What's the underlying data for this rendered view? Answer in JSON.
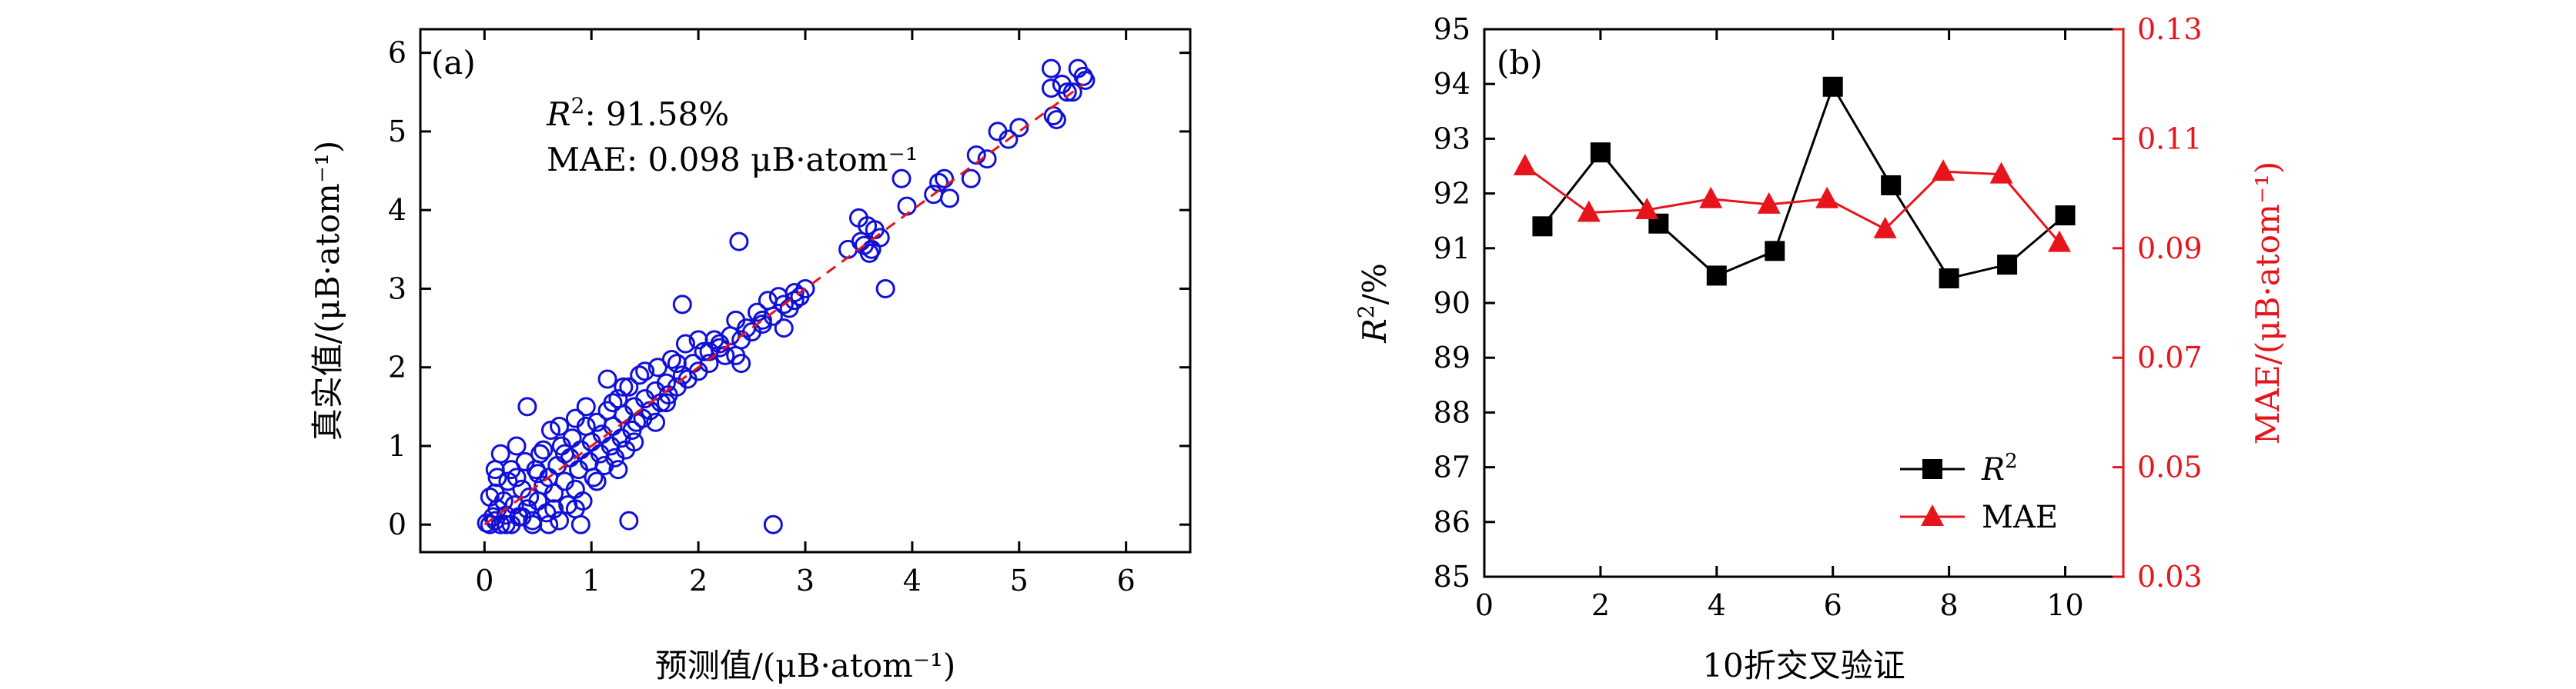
{
  "colors": {
    "scatter": "#1010d8",
    "diagonal": "#e8141b",
    "r2_series": "#000000",
    "mae_series": "#e8141b",
    "axis": "#000000"
  },
  "chart_data": [
    {
      "type": "scatter",
      "panel_label": "(a)",
      "xlabel": "预测值/(μB·atom⁻¹)",
      "ylabel": "真实值/(μB·atom⁻¹)",
      "xlim": [
        -0.6,
        6.6
      ],
      "ylim": [
        -0.35,
        6.3
      ],
      "xticks": [
        0,
        1,
        2,
        3,
        4,
        5,
        6
      ],
      "yticks": [
        0,
        1,
        2,
        3,
        4,
        5,
        6
      ],
      "annotations": {
        "r2_name": "R",
        "r2_sup": "2",
        "r2_value": ": 91.58%",
        "mae_text": "MAE: 0.098 μB·atom⁻¹"
      },
      "diagonal": {
        "from": [
          0,
          0
        ],
        "to": [
          5.6,
          5.6
        ],
        "style": "dashed"
      },
      "points": [
        [
          0.02,
          0.02
        ],
        [
          0.05,
          0.0
        ],
        [
          0.08,
          0.1
        ],
        [
          0.1,
          0.05
        ],
        [
          0.12,
          0.2
        ],
        [
          0.15,
          0.0
        ],
        [
          0.18,
          0.3
        ],
        [
          0.2,
          0.12
        ],
        [
          0.05,
          0.35
        ],
        [
          0.1,
          0.4
        ],
        [
          0.22,
          0.55
        ],
        [
          0.25,
          0.0
        ],
        [
          0.28,
          0.25
        ],
        [
          0.3,
          0.6
        ],
        [
          0.32,
          0.1
        ],
        [
          0.35,
          0.45
        ],
        [
          0.38,
          0.8
        ],
        [
          0.4,
          0.2
        ],
        [
          0.42,
          0.35
        ],
        [
          0.45,
          0.05
        ],
        [
          0.48,
          0.7
        ],
        [
          0.5,
          0.3
        ],
        [
          0.52,
          0.9
        ],
        [
          0.55,
          0.5
        ],
        [
          0.58,
          0.15
        ],
        [
          0.6,
          0.6
        ],
        [
          0.62,
          1.2
        ],
        [
          0.65,
          0.4
        ],
        [
          0.68,
          0.75
        ],
        [
          0.7,
          0.05
        ],
        [
          0.72,
          1.0
        ],
        [
          0.75,
          0.55
        ],
        [
          0.78,
          0.25
        ],
        [
          0.8,
          0.85
        ],
        [
          0.82,
          1.1
        ],
        [
          0.85,
          0.45
        ],
        [
          0.88,
          0.7
        ],
        [
          0.9,
          0.95
        ],
        [
          0.92,
          0.3
        ],
        [
          0.95,
          1.25
        ],
        [
          0.98,
          0.8
        ],
        [
          1.0,
          1.05
        ],
        [
          1.02,
          0.6
        ],
        [
          1.05,
          1.3
        ],
        [
          1.08,
          0.9
        ],
        [
          1.1,
          1.15
        ],
        [
          1.12,
          0.75
        ],
        [
          1.15,
          1.45
        ],
        [
          1.18,
          1.0
        ],
        [
          1.2,
          1.25
        ],
        [
          1.22,
          0.85
        ],
        [
          1.25,
          1.6
        ],
        [
          1.28,
          1.1
        ],
        [
          1.3,
          1.4
        ],
        [
          1.32,
          0.95
        ],
        [
          1.35,
          1.75
        ],
        [
          1.38,
          1.2
        ],
        [
          1.4,
          1.5
        ],
        [
          1.42,
          1.3
        ],
        [
          1.45,
          1.9
        ],
        [
          1.48,
          1.35
        ],
        [
          1.5,
          1.6
        ],
        [
          1.55,
          1.45
        ],
        [
          1.6,
          1.7
        ],
        [
          1.62,
          2.0
        ],
        [
          1.65,
          1.55
        ],
        [
          1.7,
          1.8
        ],
        [
          1.72,
          1.65
        ],
        [
          1.75,
          2.1
        ],
        [
          1.8,
          1.75
        ],
        [
          1.85,
          1.9
        ],
        [
          1.88,
          2.3
        ],
        [
          1.9,
          1.85
        ],
        [
          1.95,
          2.05
        ],
        [
          2.0,
          1.95
        ],
        [
          2.05,
          2.2
        ],
        [
          2.1,
          2.05
        ],
        [
          2.15,
          2.35
        ],
        [
          2.2,
          2.25
        ],
        [
          2.25,
          2.15
        ],
        [
          2.3,
          2.4
        ],
        [
          2.35,
          2.6
        ],
        [
          2.4,
          2.35
        ],
        [
          2.45,
          2.5
        ],
        [
          2.5,
          2.45
        ],
        [
          2.55,
          2.7
        ],
        [
          2.6,
          2.55
        ],
        [
          2.65,
          2.85
        ],
        [
          2.7,
          2.65
        ],
        [
          2.75,
          2.9
        ],
        [
          2.8,
          2.8
        ],
        [
          2.85,
          2.75
        ],
        [
          2.9,
          2.95
        ],
        [
          2.95,
          2.9
        ],
        [
          3.0,
          3.0
        ],
        [
          2.38,
          3.6
        ],
        [
          1.85,
          2.8
        ],
        [
          0.4,
          1.5
        ],
        [
          0.1,
          0.7
        ],
        [
          0.15,
          0.9
        ],
        [
          0.3,
          1.0
        ],
        [
          0.2,
          0.0
        ],
        [
          0.6,
          0.0
        ],
        [
          0.9,
          0.0
        ],
        [
          0.45,
          0.0
        ],
        [
          1.35,
          0.05
        ],
        [
          2.7,
          0.0
        ],
        [
          3.75,
          3.0
        ],
        [
          3.4,
          3.5
        ],
        [
          3.5,
          3.9
        ],
        [
          3.55,
          3.55
        ],
        [
          3.6,
          3.45
        ],
        [
          3.65,
          3.75
        ],
        [
          3.7,
          3.65
        ],
        [
          3.58,
          3.8
        ],
        [
          3.62,
          3.5
        ],
        [
          3.52,
          3.6
        ],
        [
          3.9,
          4.4
        ],
        [
          3.95,
          4.05
        ],
        [
          4.2,
          4.2
        ],
        [
          4.25,
          4.35
        ],
        [
          4.3,
          4.4
        ],
        [
          4.35,
          4.15
        ],
        [
          4.55,
          4.4
        ],
        [
          4.6,
          4.7
        ],
        [
          4.7,
          4.65
        ],
        [
          4.8,
          5.0
        ],
        [
          4.9,
          4.9
        ],
        [
          5.0,
          5.05
        ],
        [
          5.3,
          5.8
        ],
        [
          5.32,
          5.2
        ],
        [
          5.35,
          5.15
        ],
        [
          5.4,
          5.6
        ],
        [
          5.45,
          5.5
        ],
        [
          5.55,
          5.8
        ],
        [
          5.6,
          5.7
        ],
        [
          5.62,
          5.65
        ],
        [
          5.3,
          5.55
        ],
        [
          5.5,
          5.5
        ],
        [
          1.05,
          0.55
        ],
        [
          1.25,
          0.7
        ],
        [
          0.85,
          1.35
        ],
        [
          0.7,
          1.25
        ],
        [
          0.55,
          0.95
        ],
        [
          1.4,
          1.05
        ],
        [
          1.6,
          1.3
        ],
        [
          1.15,
          1.85
        ],
        [
          0.95,
          1.5
        ],
        [
          0.35,
          0.1
        ],
        [
          0.65,
          0.2
        ],
        [
          0.25,
          0.7
        ],
        [
          0.12,
          0.6
        ],
        [
          2.35,
          2.15
        ],
        [
          2.4,
          2.05
        ],
        [
          2.6,
          2.6
        ],
        [
          2.8,
          2.5
        ],
        [
          2.9,
          2.85
        ],
        [
          1.7,
          1.55
        ],
        [
          1.8,
          2.05
        ],
        [
          2.0,
          2.35
        ],
        [
          2.1,
          2.2
        ],
        [
          2.2,
          2.3
        ],
        [
          1.5,
          1.95
        ],
        [
          1.3,
          1.75
        ],
        [
          1.2,
          1.55
        ],
        [
          0.75,
          0.9
        ],
        [
          0.85,
          0.2
        ],
        [
          0.5,
          0.65
        ]
      ]
    },
    {
      "type": "line",
      "panel_label": "(b)",
      "xlabel": "10折交叉验证",
      "ylabel_name": "R",
      "ylabel_sup": "2",
      "ylabel_rest": "/%",
      "y2label": "MAE/(μB·atom⁻¹)",
      "xlim": [
        0,
        11
      ],
      "ylim": [
        85,
        95
      ],
      "y2lim": [
        0.03,
        0.13
      ],
      "xticks": [
        0,
        2,
        4,
        6,
        8,
        10
      ],
      "yticks": [
        85,
        86,
        87,
        88,
        89,
        90,
        91,
        92,
        93,
        94,
        95
      ],
      "y2ticks": [
        0.03,
        0.05,
        0.07,
        0.09,
        0.11,
        0.13
      ],
      "y2tick_labels": [
        "0.03",
        "0.05",
        "0.07",
        "0.09",
        "0.11",
        "0.13"
      ],
      "legend_position": "bottom-right",
      "series": [
        {
          "name_main": "R",
          "name_sup": "2",
          "marker": "square",
          "axis": "left",
          "x": [
            1,
            2,
            3,
            4,
            5,
            6,
            7,
            8,
            9,
            10
          ],
          "values": [
            91.4,
            92.75,
            91.45,
            90.5,
            90.95,
            93.95,
            92.15,
            90.45,
            90.7,
            91.6
          ]
        },
        {
          "name": "MAE",
          "marker": "triangle",
          "axis": "right",
          "x": [
            0.7,
            1.8,
            2.8,
            3.9,
            4.9,
            5.9,
            6.9,
            7.9,
            8.9,
            9.9
          ],
          "values": [
            0.105,
            0.0965,
            0.097,
            0.099,
            0.098,
            0.099,
            0.0935,
            0.104,
            0.1035,
            0.091
          ]
        }
      ]
    }
  ]
}
